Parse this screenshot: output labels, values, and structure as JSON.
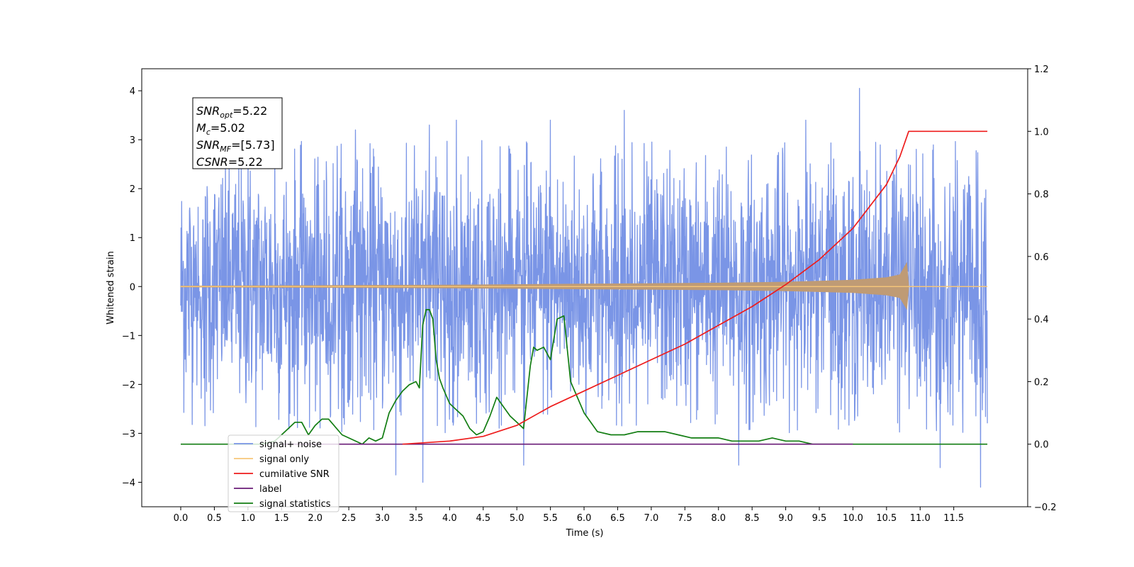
{
  "chart_data": {
    "type": "line",
    "title": "",
    "xlabel": "Time (s)",
    "ylabel": "Whitened strain",
    "xlim": [
      -0.58,
      12.6
    ],
    "ylim": [
      -4.5,
      4.45
    ],
    "y2lim": [
      -0.2,
      1.2
    ],
    "x_ticks": [
      0.0,
      0.5,
      1.0,
      1.5,
      2.0,
      2.5,
      3.0,
      3.5,
      4.0,
      4.5,
      5.0,
      5.5,
      6.0,
      6.5,
      7.0,
      7.5,
      8.0,
      8.5,
      9.0,
      9.5,
      10.0,
      10.5,
      11.0,
      11.5
    ],
    "x_tick_labels": [
      "0.0",
      "0.5",
      "1.0",
      "1.5",
      "2.0",
      "2.5",
      "3.0",
      "3.5",
      "4.0",
      "4.5",
      "5.0",
      "5.5",
      "6.0",
      "6.5",
      "7.0",
      "7.5",
      "8.0",
      "8.5",
      "9.0",
      "9.5",
      "10.0",
      "10.5",
      "11.0",
      "11.5"
    ],
    "y_ticks": [
      -4,
      -3,
      -2,
      -1,
      0,
      1,
      2,
      3,
      4
    ],
    "y_tick_labels": [
      "−4",
      "−3",
      "−2",
      "−1",
      "0",
      "1",
      "2",
      "3",
      "4"
    ],
    "y2_ticks": [
      -0.2,
      0.0,
      0.2,
      0.4,
      0.6,
      0.8,
      1.0,
      1.2
    ],
    "y2_tick_labels": [
      "−0.2",
      "0.0",
      "0.2",
      "0.4",
      "0.6",
      "0.8",
      "1.0",
      "1.2"
    ],
    "grid": false,
    "legend_position": "lower-left",
    "series": [
      {
        "name": "signal+ noise",
        "axis": "left",
        "color": "#7a95e6",
        "x_range": [
          0.0,
          12.0
        ],
        "spread": 1.25,
        "peaks": [
          [
            1.0,
            2.9
          ],
          [
            1.4,
            3.0
          ],
          [
            2.6,
            3.2
          ],
          [
            3.7,
            3.3
          ],
          [
            4.1,
            3.4
          ],
          [
            5.5,
            3.4
          ],
          [
            6.6,
            3.6
          ],
          [
            8.3,
            3.3
          ],
          [
            9.3,
            3.4
          ],
          [
            10.1,
            4.05
          ],
          [
            11.9,
            3.3
          ],
          [
            3.6,
            -4.0
          ],
          [
            11.9,
            -4.1
          ],
          [
            3.2,
            -3.85
          ],
          [
            5.1,
            -3.65
          ],
          [
            11.3,
            -3.7
          ],
          [
            8.3,
            -3.65
          ]
        ]
      },
      {
        "name": "signal only",
        "axis": "left",
        "color": "#f7c77a",
        "fill_color": "#bf9b75",
        "x": [
          0.0,
          4.0,
          6.0,
          8.0,
          9.0,
          10.0,
          10.5,
          10.7,
          10.8,
          10.83,
          12.0
        ],
        "envelope": [
          0.01,
          0.03,
          0.05,
          0.07,
          0.09,
          0.13,
          0.18,
          0.24,
          0.48,
          0.0,
          0.0
        ]
      },
      {
        "name": "cumilative SNR",
        "axis": "right",
        "color": "#ee1c1c",
        "x": [
          3.3,
          4.0,
          4.5,
          5.0,
          5.5,
          6.0,
          6.5,
          7.0,
          7.5,
          8.0,
          8.5,
          9.0,
          9.5,
          10.0,
          10.5,
          10.7,
          10.83,
          11.0,
          11.5,
          12.0
        ],
        "values": [
          0.0,
          0.01,
          0.025,
          0.06,
          0.12,
          0.17,
          0.22,
          0.27,
          0.32,
          0.38,
          0.44,
          0.51,
          0.59,
          0.69,
          0.83,
          0.92,
          1.0,
          1.0,
          1.0,
          1.0
        ]
      },
      {
        "name": "label",
        "axis": "right",
        "color": "#6a1b77",
        "x": [
          1.5,
          10.0
        ],
        "values": [
          0.0,
          0.0
        ]
      },
      {
        "name": "signal statistics",
        "axis": "right",
        "color": "#127d12",
        "x": [
          0.0,
          1.2,
          1.4,
          1.5,
          1.6,
          1.7,
          1.8,
          1.9,
          2.0,
          2.1,
          2.2,
          2.4,
          2.5,
          2.7,
          2.8,
          2.9,
          3.0,
          3.1,
          3.2,
          3.3,
          3.4,
          3.5,
          3.55,
          3.6,
          3.65,
          3.7,
          3.75,
          3.8,
          3.85,
          3.9,
          4.0,
          4.1,
          4.2,
          4.3,
          4.4,
          4.5,
          4.6,
          4.7,
          4.8,
          4.9,
          5.0,
          5.1,
          5.2,
          5.25,
          5.3,
          5.4,
          5.5,
          5.6,
          5.7,
          5.8,
          5.9,
          6.0,
          6.1,
          6.2,
          6.4,
          6.6,
          6.8,
          7.0,
          7.2,
          7.4,
          7.6,
          7.8,
          8.0,
          8.2,
          8.4,
          8.6,
          8.8,
          9.0,
          9.2,
          9.4,
          9.6,
          10.0,
          12.0
        ],
        "values": [
          0.0,
          0.0,
          0.01,
          0.03,
          0.05,
          0.07,
          0.07,
          0.03,
          0.06,
          0.08,
          0.08,
          0.03,
          0.02,
          0.0,
          0.02,
          0.01,
          0.02,
          0.1,
          0.14,
          0.17,
          0.19,
          0.2,
          0.18,
          0.38,
          0.43,
          0.43,
          0.4,
          0.27,
          0.21,
          0.18,
          0.13,
          0.11,
          0.09,
          0.05,
          0.03,
          0.04,
          0.09,
          0.15,
          0.12,
          0.09,
          0.07,
          0.05,
          0.25,
          0.31,
          0.3,
          0.31,
          0.27,
          0.4,
          0.41,
          0.2,
          0.15,
          0.1,
          0.07,
          0.04,
          0.03,
          0.03,
          0.04,
          0.04,
          0.04,
          0.03,
          0.02,
          0.02,
          0.02,
          0.01,
          0.01,
          0.01,
          0.02,
          0.01,
          0.01,
          0.0,
          0.0,
          0.0,
          0.0
        ]
      }
    ],
    "annotation": {
      "lines": [
        {
          "sym": "SNR",
          "sub": "opt",
          "value": "=5.22"
        },
        {
          "sym": "M",
          "sub": "c",
          "value": "=5.02"
        },
        {
          "sym": "SNR",
          "sub": "MF",
          "value": "=[5.73]"
        },
        {
          "sym": "CSNR",
          "sub": "",
          "value": "=5.22"
        }
      ]
    },
    "legend": {
      "entries": [
        {
          "label": "signal+ noise",
          "color": "#7a95e6"
        },
        {
          "label": "signal only",
          "color": "#f7c77a"
        },
        {
          "label": "cumilative SNR",
          "color": "#ee1c1c"
        },
        {
          "label": "label",
          "color": "#6a1b77"
        },
        {
          "label": "signal statistics",
          "color": "#127d12"
        }
      ]
    }
  }
}
